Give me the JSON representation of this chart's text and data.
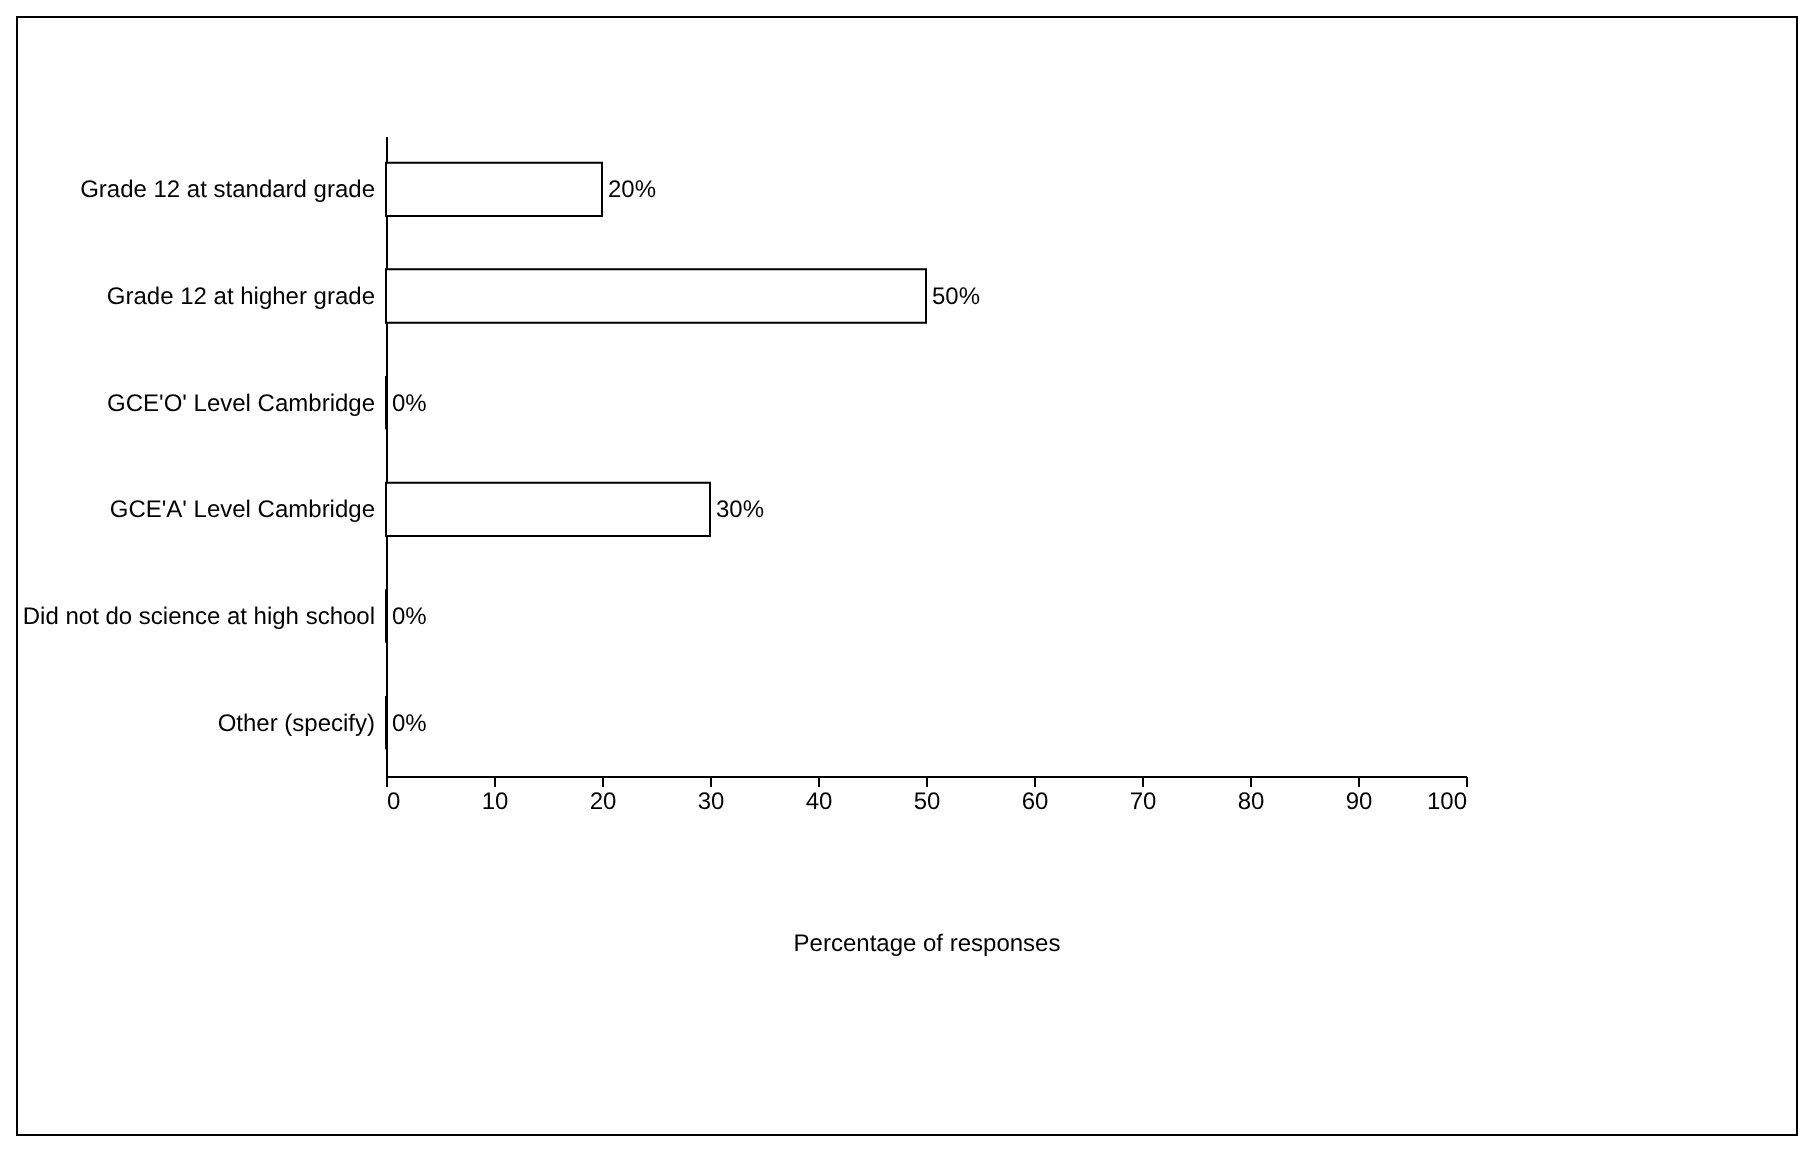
{
  "chart_data": {
    "type": "bar",
    "orientation": "horizontal",
    "categories": [
      "Grade 12 at standard grade",
      "Grade 12 at higher grade",
      "GCE'O' Level Cambridge",
      "GCE'A' Level Cambridge",
      "Did not do science at high school",
      "Other (specify)"
    ],
    "values": [
      20,
      50,
      0,
      30,
      0,
      0
    ],
    "value_labels": [
      "20%",
      "50%",
      "0%",
      "30%",
      "0%",
      "0%"
    ],
    "color": "#ffffff",
    "xlabel": "Percentage of responses",
    "xlim": [
      0,
      100
    ],
    "xticks": [
      0,
      10,
      20,
      30,
      40,
      50,
      60,
      70,
      80,
      90,
      100
    ],
    "grid": false
  }
}
